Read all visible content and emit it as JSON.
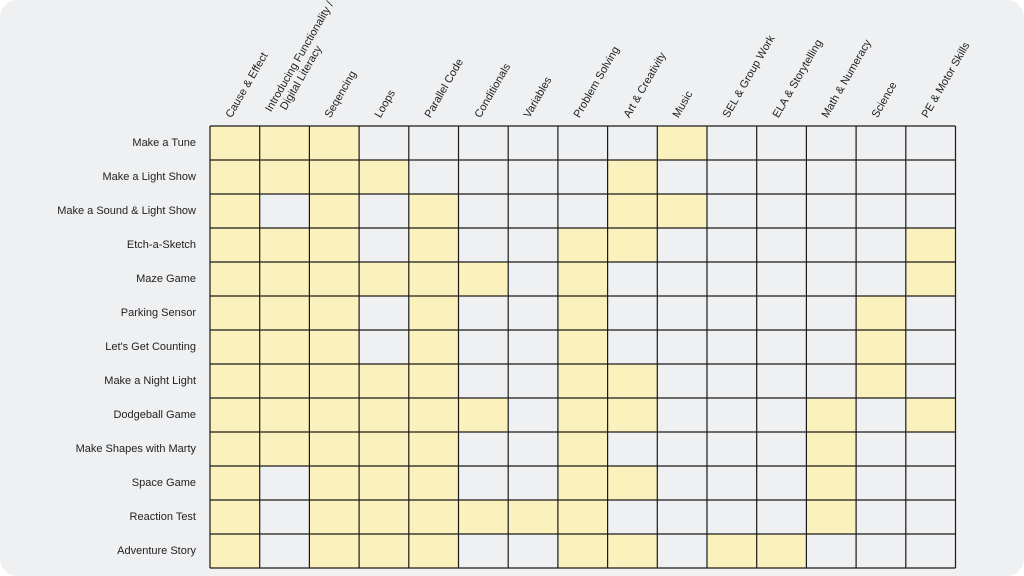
{
  "chart_data": {
    "type": "heatmap",
    "title": "",
    "columns": [
      "Cause & Effect",
      "Introducing Functionality / Digital Literacy",
      "Seqencing",
      "Loops",
      "Parallel Code",
      "Conditionals",
      "Variables",
      "Problem Solving",
      "Art & Creativity",
      "Music",
      "SEL & Group Work",
      "ELA & Storytelling",
      "Math & Numeracy",
      "Science",
      "PE & Motor Skills"
    ],
    "column_lines": [
      [
        "Cause & Effect"
      ],
      [
        "Introducing Functionality /",
        "Digital Literacy"
      ],
      [
        "Seqencing"
      ],
      [
        "Loops"
      ],
      [
        "Parallel Code"
      ],
      [
        "Conditionals"
      ],
      [
        "Variables"
      ],
      [
        "Problem Solving"
      ],
      [
        "Art & Creativity"
      ],
      [
        "Music"
      ],
      [
        "SEL & Group Work"
      ],
      [
        "ELA & Storytelling"
      ],
      [
        "Math & Numeracy"
      ],
      [
        "Science"
      ],
      [
        "PE & Motor Skills"
      ]
    ],
    "rows": [
      "Make a Tune",
      "Make a Light Show",
      "Make a Sound & Light Show",
      "Etch-a-Sketch",
      "Maze Game",
      "Parking Sensor",
      "Let's Get Counting",
      "Make a Night Light",
      "Dodgeball Game",
      "Make Shapes with Marty",
      "Space Game",
      "Reaction Test",
      "Adventure Story"
    ],
    "values": [
      [
        1,
        1,
        1,
        0,
        0,
        0,
        0,
        0,
        0,
        1,
        0,
        0,
        0,
        0,
        0
      ],
      [
        1,
        1,
        1,
        1,
        0,
        0,
        0,
        0,
        1,
        0,
        0,
        0,
        0,
        0,
        0
      ],
      [
        1,
        0,
        1,
        0,
        1,
        0,
        0,
        0,
        1,
        1,
        0,
        0,
        0,
        0,
        0
      ],
      [
        1,
        1,
        1,
        0,
        1,
        0,
        0,
        1,
        1,
        0,
        0,
        0,
        0,
        0,
        1
      ],
      [
        1,
        1,
        1,
        1,
        1,
        1,
        0,
        1,
        0,
        0,
        0,
        0,
        0,
        0,
        1
      ],
      [
        1,
        1,
        1,
        0,
        1,
        0,
        0,
        1,
        0,
        0,
        0,
        0,
        0,
        1,
        0
      ],
      [
        1,
        1,
        1,
        0,
        1,
        0,
        0,
        1,
        0,
        0,
        0,
        0,
        0,
        1,
        0
      ],
      [
        1,
        1,
        1,
        1,
        1,
        0,
        0,
        1,
        1,
        0,
        0,
        0,
        0,
        1,
        0
      ],
      [
        1,
        1,
        1,
        1,
        1,
        1,
        0,
        1,
        1,
        0,
        0,
        0,
        1,
        0,
        1
      ],
      [
        1,
        1,
        1,
        1,
        1,
        0,
        0,
        1,
        0,
        0,
        0,
        0,
        1,
        0,
        0
      ],
      [
        1,
        0,
        1,
        1,
        1,
        0,
        0,
        1,
        1,
        0,
        0,
        0,
        1,
        0,
        0
      ],
      [
        1,
        0,
        1,
        1,
        1,
        1,
        1,
        1,
        0,
        0,
        0,
        0,
        1,
        0,
        0
      ],
      [
        1,
        0,
        1,
        1,
        1,
        0,
        0,
        1,
        1,
        0,
        1,
        1,
        0,
        0,
        0
      ]
    ],
    "colors": {
      "filled": "#faf1bd",
      "empty": "#eff0f2",
      "grid": "#1a1a1a"
    }
  }
}
